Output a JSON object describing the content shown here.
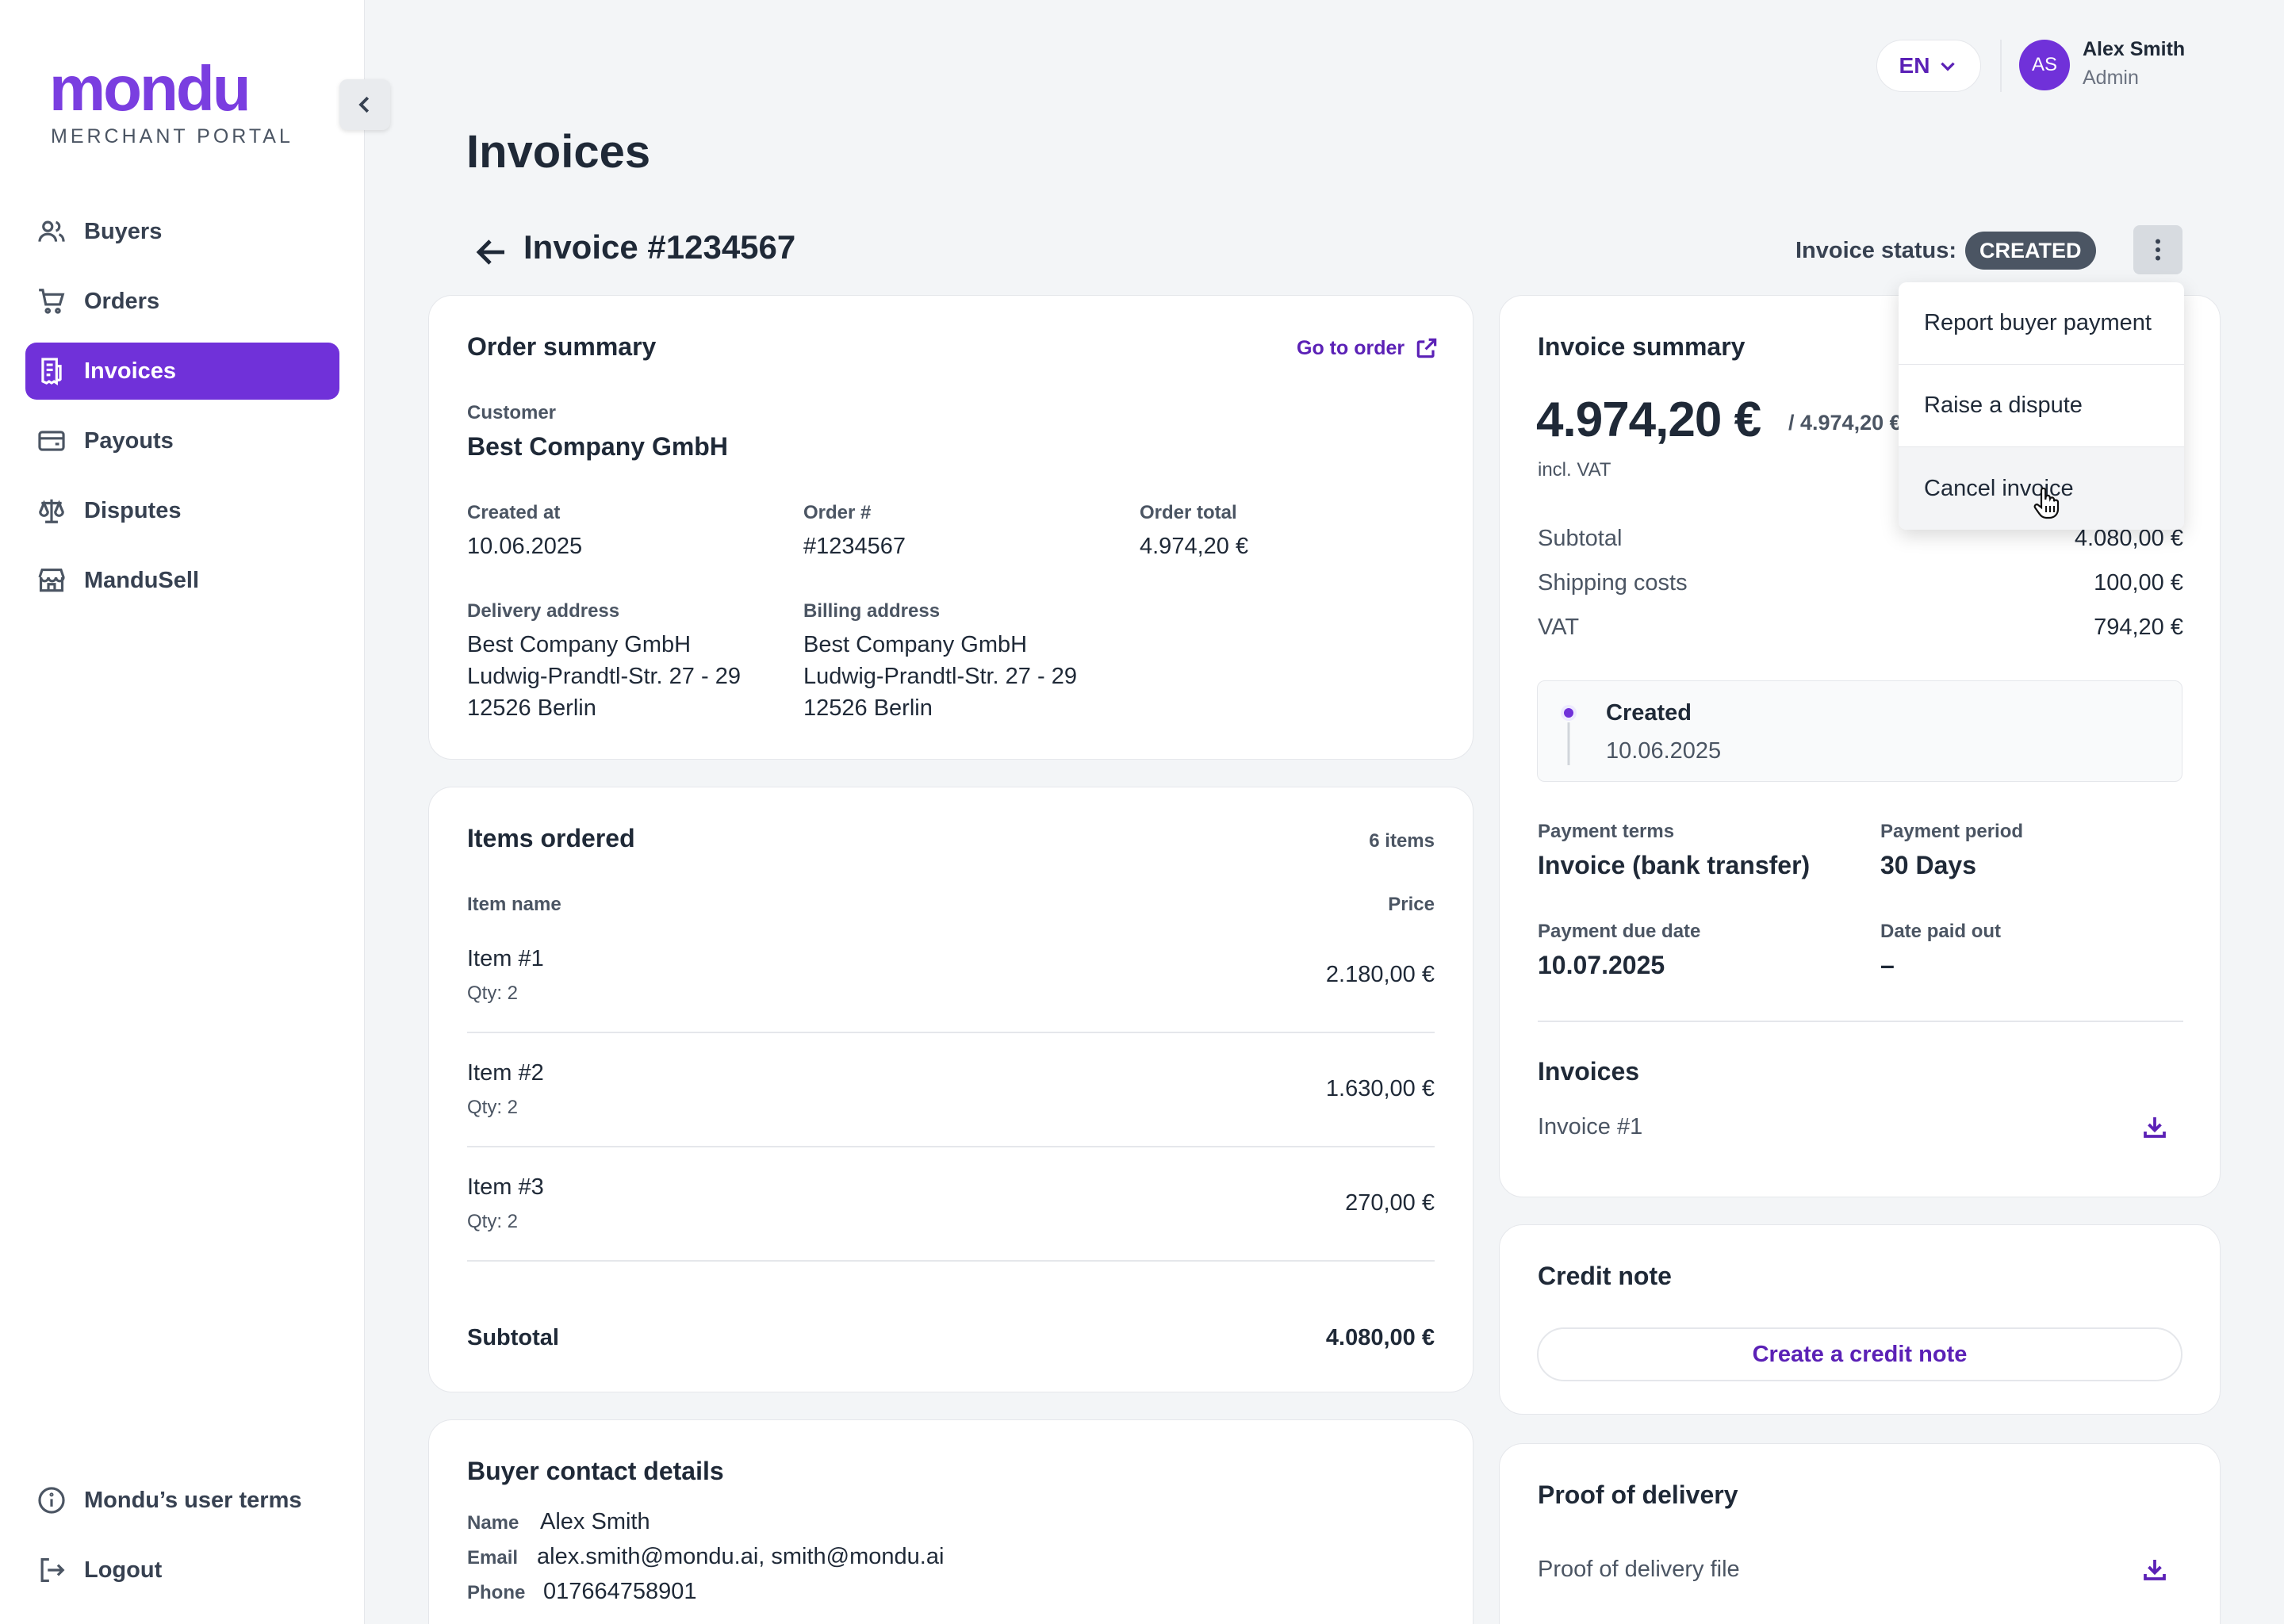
{
  "brand": {
    "name": "mondu",
    "subtitle": "MERCHANT PORTAL"
  },
  "sidebar": {
    "items": [
      {
        "label": "Buyers",
        "icon": "users-icon"
      },
      {
        "label": "Orders",
        "icon": "cart-icon"
      },
      {
        "label": "Invoices",
        "icon": "invoice-icon",
        "active": true
      },
      {
        "label": "Payouts",
        "icon": "wallet-icon"
      },
      {
        "label": "Disputes",
        "icon": "scale-icon"
      },
      {
        "label": "ManduSell",
        "icon": "store-icon"
      }
    ],
    "bottom": [
      {
        "label": "Mondu’s user terms",
        "icon": "info-icon"
      },
      {
        "label": "Logout",
        "icon": "logout-icon"
      }
    ]
  },
  "header": {
    "language": "EN",
    "user_initials": "AS",
    "user_name": "Alex Smith",
    "user_role": "Admin"
  },
  "page": {
    "title": "Invoices",
    "invoice_title": "Invoice #1234567",
    "status_label": "Invoice status:",
    "status": "CREATED"
  },
  "menu": {
    "items": [
      "Report buyer payment",
      "Raise a dispute",
      "Cancel invoice"
    ]
  },
  "order_summary": {
    "title": "Order summary",
    "go_to_order": "Go to order",
    "customer_label": "Customer",
    "customer": "Best Company GmbH",
    "created_label": "Created at",
    "created": "10.06.2025",
    "order_no_label": "Order #",
    "order_no": "#1234567",
    "total_label": "Order total",
    "total": "4.974,20 €",
    "delivery_label": "Delivery address",
    "delivery": [
      "Best Company GmbH",
      "Ludwig-Prandtl-Str. 27 - 29",
      "12526 Berlin"
    ],
    "billing_label": "Billing address",
    "billing": [
      "Best Company GmbH",
      "Ludwig-Prandtl-Str. 27 - 29",
      "12526 Berlin"
    ]
  },
  "items_ordered": {
    "title": "Items ordered",
    "count": "6 items",
    "col_name": "Item name",
    "col_price": "Price",
    "items": [
      {
        "name": "Item #1",
        "qty": "Qty: 2",
        "price": "2.180,00 €"
      },
      {
        "name": "Item #2",
        "qty": "Qty: 2",
        "price": "1.630,00 €"
      },
      {
        "name": "Item #3",
        "qty": "Qty: 2",
        "price": "270,00 €"
      }
    ],
    "subtotal_label": "Subtotal",
    "subtotal": "4.080,00 €"
  },
  "buyer_contact": {
    "title": "Buyer contact details",
    "name_label": "Name",
    "name": "Alex Smith",
    "email_label": "Email",
    "email": "alex.smith@mondu.ai, smith@mondu.ai",
    "phone_label": "Phone",
    "phone": "017664758901"
  },
  "invoice_summary": {
    "title": "Invoice summary",
    "amount": "4.974,20 €",
    "amount_of": "/ 4.974,20 €",
    "vat_note": "incl. VAT",
    "subtotal_label": "Subtotal",
    "subtotal": "4.080,00 €",
    "shipping_label": "Shipping costs",
    "shipping": "100,00 €",
    "vat_label": "VAT",
    "vat": "794,20 €",
    "timeline_status": "Created",
    "timeline_date": "10.06.2025",
    "terms_label": "Payment terms",
    "terms": "Invoice (bank transfer)",
    "period_label": "Payment period",
    "period": "30 Days",
    "due_label": "Payment due date",
    "due": "10.07.2025",
    "paid_label": "Date paid out",
    "paid": "–",
    "invoices_title": "Invoices",
    "invoice_file": "Invoice #1"
  },
  "credit_note": {
    "title": "Credit note",
    "button": "Create a credit note"
  },
  "proof": {
    "title": "Proof of delivery",
    "file": "Proof of delivery file"
  },
  "colors": {
    "accent": "#7031d9",
    "link": "#5b21b6",
    "badge": "#4b5563"
  }
}
